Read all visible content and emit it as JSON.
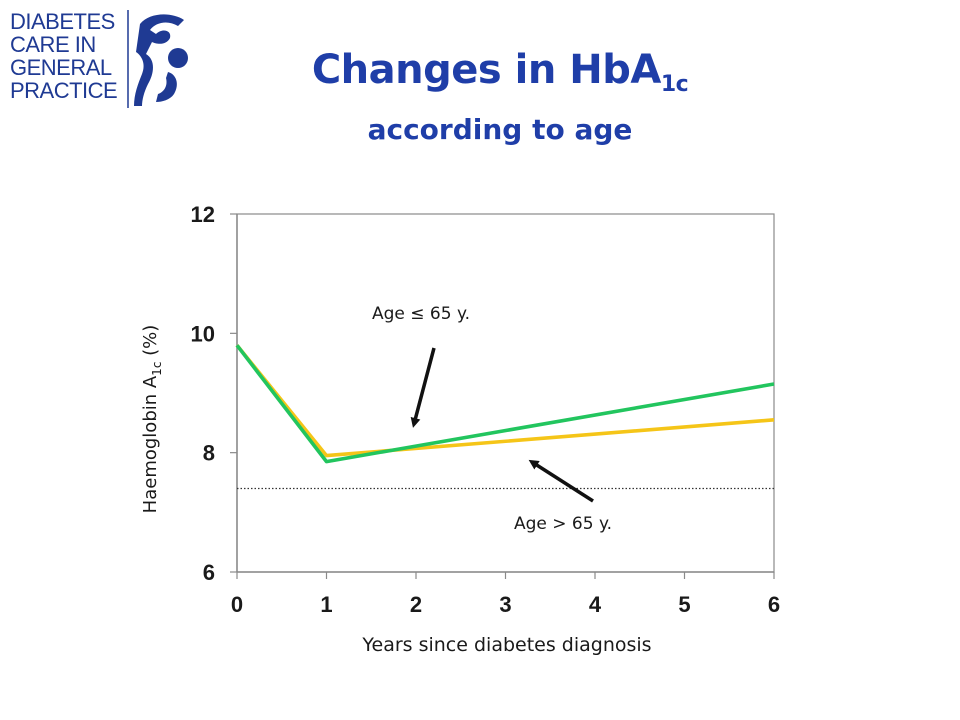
{
  "logo": {
    "lines": [
      "DIABETES",
      "CARE IN",
      "GENERAL",
      "PRACTICE"
    ],
    "color": "#1f3a93"
  },
  "title": {
    "main": "Changes in HbA",
    "main_sub": "1c",
    "subtitle": "according to age",
    "color": "#1f3ea8"
  },
  "chart_data": {
    "type": "line",
    "x": [
      0,
      1,
      6
    ],
    "series": [
      {
        "name": "Age ≤ 65 y.",
        "color": "#22c55e",
        "values": [
          9.8,
          7.85,
          9.15
        ]
      },
      {
        "name": "Age > 65 y.",
        "color": "#f5c518",
        "values": [
          9.8,
          7.95,
          8.55
        ]
      }
    ],
    "reference_line": {
      "y": 7.4,
      "style": "dotted"
    },
    "xlabel": "Years since diabetes diagnosis",
    "ylabel": "Haemoglobin A",
    "ylabel_sub": "1c",
    "ylabel_suffix": "(%)",
    "xlim": [
      0,
      6
    ],
    "ylim": [
      6,
      12
    ],
    "xticks": [
      "0",
      "1",
      "2",
      "3",
      "4",
      "5",
      "6"
    ],
    "yticks": [
      "6",
      "8",
      "10",
      "12"
    ],
    "grid": false,
    "annotations": [
      {
        "text": "Age ≤ 65 y.",
        "series": "Age ≤ 65 y."
      },
      {
        "text": "Age > 65 y.",
        "series": "Age > 65 y."
      }
    ]
  }
}
